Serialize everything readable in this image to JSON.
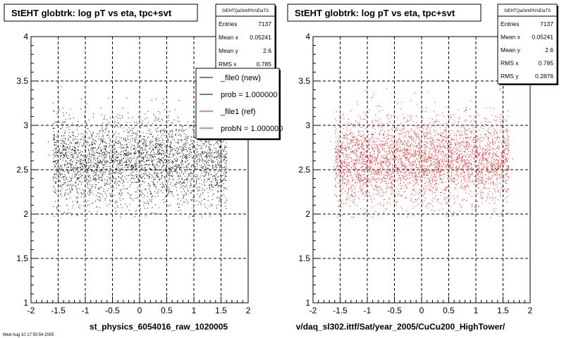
{
  "chart_data": [
    {
      "type": "scatter",
      "title": "StEHT globtrk: log pT vs eta, tpc+svt",
      "xlabel": "st_physics_6054016_raw_1020005",
      "ylabel": "",
      "xlim": [
        -2,
        2
      ],
      "ylim": [
        1,
        4
      ],
      "xticks": [
        "-2",
        "-1.5",
        "-1",
        "-0.5",
        "0",
        "0.5",
        "1",
        "1.5",
        "2"
      ],
      "yticks": [
        "1",
        "1.5",
        "2",
        "2.5",
        "3",
        "3.5",
        "4"
      ],
      "grid": true,
      "marker_color": "#000000",
      "distribution": {
        "x_range": [
          -1.6,
          1.6
        ],
        "y_center": 2.6,
        "y_spread": 0.2876
      },
      "stats": {
        "name": "StEHTQaGtrkPtVsEtaTS",
        "rows": [
          {
            "label": "Entries",
            "value": "7137"
          },
          {
            "label": "Mean x",
            "value": "0.05241"
          },
          {
            "label": "Mean y",
            "value": "2.6"
          },
          {
            "label": "RMS x",
            "value": "0.785"
          }
        ]
      },
      "legend": {
        "position": "top-right",
        "entries": [
          {
            "label": "_file0 (new)",
            "color": "#000000"
          },
          {
            "label": "prob = 1.000000",
            "color": "#000000"
          },
          {
            "label": "_file1 (ref)",
            "color": "#ff0000"
          },
          {
            "label": "probN = 1.000000",
            "color": "#ff0000"
          }
        ]
      }
    },
    {
      "type": "scatter",
      "title": "StEHT globtrk: log pT vs eta, tpc+svt",
      "xlabel": "v/daq_sl302.ittf/Sat/year_2005/CuCu200_HighTower/",
      "ylabel": "",
      "xlim": [
        -2,
        2
      ],
      "ylim": [
        1,
        4
      ],
      "xticks": [
        "-2",
        "-1.5",
        "-1",
        "-0.5",
        "0",
        "0.5",
        "1",
        "1.5",
        "2"
      ],
      "yticks": [
        "1",
        "1.5",
        "2",
        "2.5",
        "3",
        "3.5",
        "4"
      ],
      "grid": true,
      "marker_color": "#ff0000",
      "distribution": {
        "x_range": [
          -1.6,
          1.6
        ],
        "y_center": 2.6,
        "y_spread": 0.2876
      },
      "stats": {
        "name": "StEHTQaGtrkPtVsEtaTS",
        "rows": [
          {
            "label": "Entries",
            "value": "7137"
          },
          {
            "label": "Mean x",
            "value": "0.05241"
          },
          {
            "label": "Mean y",
            "value": "2.6"
          },
          {
            "label": "RMS x",
            "value": "0.785"
          },
          {
            "label": "RMS y",
            "value": "0.2876"
          }
        ]
      }
    }
  ],
  "footer": {
    "text": "Wed Aug 10 17:50:54 2005"
  }
}
